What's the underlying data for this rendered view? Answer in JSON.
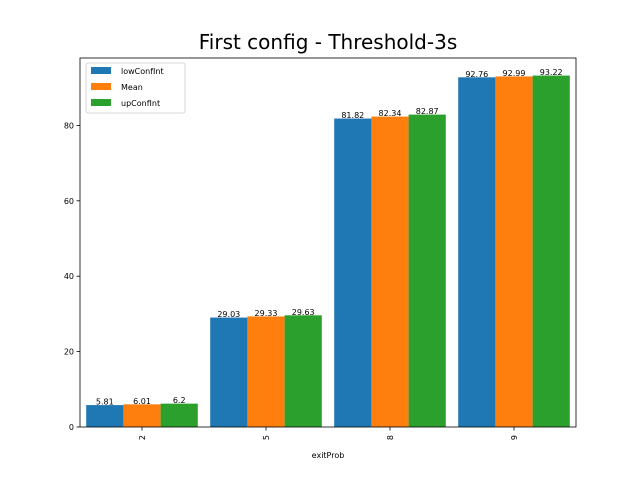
{
  "chart_data": {
    "type": "bar",
    "title": "First config - Threshold-3s",
    "xlabel": "exitProb",
    "ylabel": "",
    "categories": [
      "2",
      "5",
      "8",
      "9"
    ],
    "series": [
      {
        "name": "lowConfInt",
        "color": "#1f77b4",
        "values": [
          5.81,
          29.03,
          81.82,
          92.76
        ],
        "labels": [
          "5.81",
          "29.03",
          "81.82",
          "92.76"
        ]
      },
      {
        "name": "Mean",
        "color": "#ff7f0e",
        "values": [
          6.01,
          29.33,
          82.34,
          92.99
        ],
        "labels": [
          "6.01",
          "29.33",
          "82.34",
          "92.99"
        ]
      },
      {
        "name": "upConfInt",
        "color": "#2ca02c",
        "values": [
          6.2,
          29.63,
          82.87,
          93.22
        ],
        "labels": [
          "6.2",
          "29.63",
          "82.87",
          "93.22"
        ]
      }
    ],
    "ylim": [
      0,
      97.88
    ],
    "yticks": [
      0,
      20,
      40,
      60,
      80
    ],
    "grid": false,
    "legend": "top-left"
  }
}
